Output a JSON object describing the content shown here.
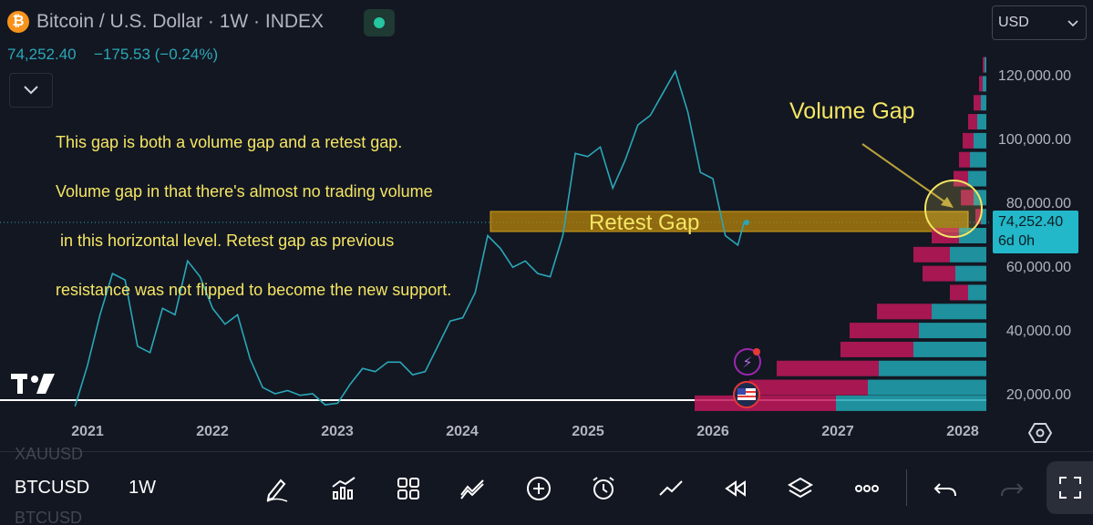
{
  "header": {
    "title": "Bitcoin / U.S. Dollar · 1W · INDEX",
    "price": "74,252.40",
    "change": "−175.53 (−0.24%)",
    "currency_select": "USD",
    "logo_glyph": "₿"
  },
  "annotation": {
    "lines": [
      "This gap is both a volume gap and a retest gap.",
      "Volume gap in that there's almost no trading volume",
      " in this horizontal level. Retest gap as previous",
      "resistance was not flipped to become the new support."
    ],
    "volume_gap_label": "Volume Gap",
    "retest_gap_label": "Retest Gap"
  },
  "price_axis": {
    "ticks": [
      "120,000.00",
      "100,000.00",
      "80,000.00",
      "60,000.00",
      "40,000.00",
      "20,000.00"
    ],
    "current_price": "74,252.40",
    "countdown": "6d 0h"
  },
  "time_axis": {
    "ticks": [
      "2021",
      "2022",
      "2023",
      "2024",
      "2025",
      "2026",
      "2027",
      "2028"
    ]
  },
  "bottom_bar": {
    "symbol": "BTCUSD",
    "interval": "1W",
    "prev_symbol": "XAUUSD",
    "next_symbol": "BTCUSD",
    "tools": [
      "pencil-icon",
      "chart-type-icon",
      "layout-icon",
      "indicators-icon",
      "add-icon",
      "alert-icon",
      "trend-icon",
      "replay-icon",
      "layers-icon",
      "more-icon",
      "undo-icon",
      "redo-icon",
      "fullscreen-icon"
    ]
  },
  "colors": {
    "background": "#131722",
    "price_line": "#26a69a",
    "line": "#2aa7b8",
    "annotation": "#f5e663",
    "retest_zone": "#b8860b",
    "vp_up": "#22a6b3",
    "vp_down": "#c2185b",
    "price_badge": "#22b7c9"
  },
  "chart_data": {
    "type": "line",
    "title": "Bitcoin / U.S. Dollar · 1W · INDEX",
    "xlabel": "",
    "ylabel": "",
    "ylim": [
      14000,
      128000
    ],
    "x": [
      2020.9,
      2021.0,
      2021.1,
      2021.2,
      2021.3,
      2021.4,
      2021.5,
      2021.6,
      2021.7,
      2021.8,
      2021.9,
      2022.0,
      2022.1,
      2022.2,
      2022.3,
      2022.4,
      2022.5,
      2022.6,
      2022.7,
      2022.8,
      2022.9,
      2023.0,
      2023.1,
      2023.2,
      2023.3,
      2023.4,
      2023.5,
      2023.6,
      2023.7,
      2023.8,
      2023.9,
      2024.0,
      2024.1,
      2024.2,
      2024.3,
      2024.4,
      2024.5,
      2024.6,
      2024.7,
      2024.8,
      2024.9,
      2025.0,
      2025.1,
      2025.2,
      2025.3,
      2025.4,
      2025.5,
      2025.6,
      2025.7,
      2025.8,
      2025.9,
      2026.0,
      2026.1,
      2026.2,
      2026.25
    ],
    "y": [
      16000,
      29000,
      45000,
      58000,
      56000,
      35000,
      33000,
      47000,
      45000,
      62000,
      57000,
      47000,
      42000,
      45000,
      31000,
      22000,
      20000,
      21000,
      19500,
      20000,
      16500,
      17000,
      23000,
      28000,
      27000,
      30000,
      30000,
      26000,
      27000,
      35000,
      43000,
      44000,
      52000,
      70000,
      66000,
      60000,
      62000,
      58000,
      57000,
      70000,
      96000,
      95000,
      98000,
      85000,
      94000,
      105000,
      108000,
      115000,
      122000,
      109000,
      90000,
      88000,
      70000,
      67000,
      74252
    ],
    "volume_profile_note": "horizontal volume profile at right edge, low volume near 74,000"
  }
}
